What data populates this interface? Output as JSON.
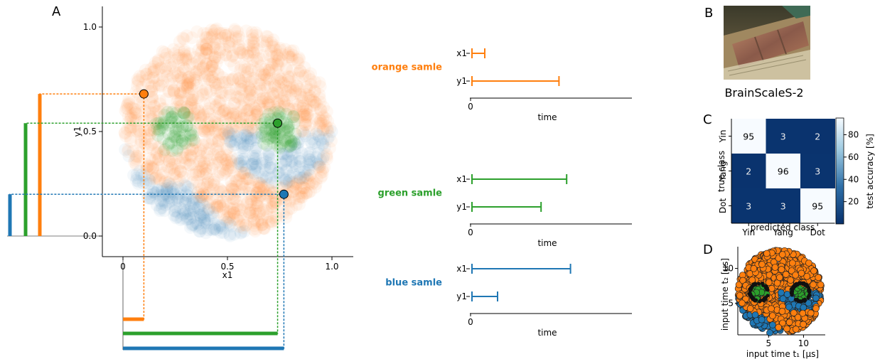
{
  "panels": {
    "a": "A",
    "b": "B",
    "c": "C",
    "d": "D"
  },
  "colors": {
    "orange": "#ff7f0e",
    "green": "#2ca02c",
    "blue": "#1f77b4"
  },
  "chart_data": [
    {
      "id": "A-scatter",
      "type": "scatter",
      "title": "",
      "xlabel": "x1",
      "ylabel": "y1",
      "xlim": [
        -0.1,
        1.1
      ],
      "ylim": [
        -0.1,
        1.1
      ],
      "xticks": [
        "0",
        "0.5",
        "1.0"
      ],
      "xtick_values": [
        0,
        0.5,
        1.0
      ],
      "yticks": [
        "0.0",
        "0.5",
        "1.0"
      ],
      "ytick_values": [
        0,
        0.5,
        1.0
      ],
      "background_classes": [
        "Yin",
        "Yang",
        "Dot"
      ],
      "highlighted_samples": [
        {
          "name": "orange samle",
          "x": 0.1,
          "y": 0.68,
          "color": "#ff7f0e"
        },
        {
          "name": "green samle",
          "x": 0.74,
          "y": 0.54,
          "color": "#2ca02c"
        },
        {
          "name": "blue samle",
          "x": 0.77,
          "y": 0.2,
          "color": "#1f77b4"
        }
      ]
    },
    {
      "id": "A-timing",
      "type": "bar",
      "xlabel": "time",
      "xtick": "0",
      "rows": [
        "x1",
        "y1"
      ],
      "samples": [
        {
          "label": "orange samle",
          "color": "#ff7f0e",
          "x1": 0.1,
          "y1": 0.68
        },
        {
          "label": "green samle",
          "color": "#2ca02c",
          "x1": 0.74,
          "y1": 0.54
        },
        {
          "label": "blue samle",
          "color": "#1f77b4",
          "x1": 0.77,
          "y1": 0.2
        }
      ]
    },
    {
      "id": "B-photo",
      "type": "image",
      "caption": "BrainScaleS-2"
    },
    {
      "id": "C-confusion",
      "type": "heatmap",
      "xlabel": "predicted class",
      "ylabel": "true class",
      "x_categories": [
        "Yin",
        "Yang",
        "Dot"
      ],
      "y_categories": [
        "Yin",
        "Yang",
        "Dot"
      ],
      "values": [
        [
          95,
          3,
          2
        ],
        [
          2,
          96,
          3
        ],
        [
          3,
          3,
          95
        ]
      ],
      "colorbar_label": "test accuracy [%]",
      "colorbar_ticks": [
        20,
        40,
        60,
        80
      ],
      "colorbar_range": [
        0,
        95
      ]
    },
    {
      "id": "D-scatter",
      "type": "scatter",
      "xlabel": "input time t₁ [µs]",
      "ylabel": "input time t₂ [µs]",
      "xticks": [
        "5",
        "10"
      ],
      "yticks": [
        "5",
        "10"
      ],
      "xlim": [
        0.6,
        12.6
      ],
      "ylim": [
        0.6,
        12.6
      ],
      "classes": [
        {
          "name": "Yin",
          "color": "#ff7f0e"
        },
        {
          "name": "Yang",
          "color": "#1f77b4"
        },
        {
          "name": "Dot",
          "color": "#2ca02c"
        }
      ]
    }
  ]
}
